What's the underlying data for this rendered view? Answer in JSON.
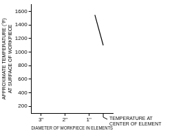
{
  "chart_data": {
    "type": "line",
    "x_label": "DIAMETER OF WORKPIECE IN ELEMENTS",
    "y_label": [
      "APPROXIMATE TEMPERATURE (°F)",
      "AT SURFACE OF WORKPIECE"
    ],
    "annotation": [
      "TEMPERATURE AT",
      "CENTER OF ELEMENT"
    ],
    "x": [
      0.75,
      0.4
    ],
    "values": [
      1550,
      1100
    ],
    "color": "#000000",
    "marker": "none",
    "xlim": [
      3.4,
      0
    ],
    "xticks": [
      {
        "value": 3,
        "label": "3\""
      },
      {
        "value": 2,
        "label": "2\""
      },
      {
        "value": 1,
        "label": "1\""
      }
    ],
    "ylim": [
      100,
      1700
    ],
    "yticks": [
      200,
      400,
      600,
      800,
      1000,
      1200,
      1400,
      1600
    ],
    "grid": false
  }
}
